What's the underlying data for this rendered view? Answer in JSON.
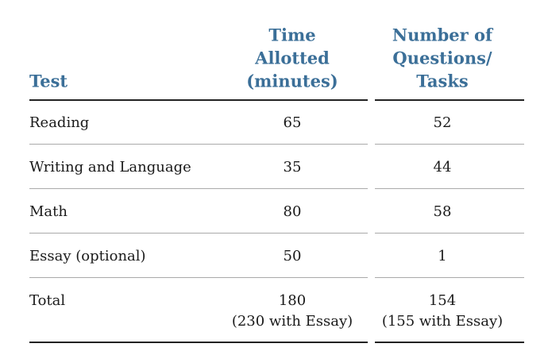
{
  "table": {
    "header": [
      [
        "Test"
      ],
      [
        "Time",
        "Allotted",
        "(minutes)"
      ],
      [
        "Number of",
        "Questions/",
        "Tasks"
      ]
    ],
    "rows": [
      [
        [
          "Reading"
        ],
        [
          "65"
        ],
        [
          "52"
        ]
      ],
      [
        [
          "Writing and Language"
        ],
        [
          "35"
        ],
        [
          "44"
        ]
      ],
      [
        [
          "Math"
        ],
        [
          "80"
        ],
        [
          "58"
        ]
      ],
      [
        [
          "Essay (optional)"
        ],
        [
          "50"
        ],
        [
          "1"
        ]
      ],
      [
        [
          "Total"
        ],
        [
          "180",
          "(230 with Essay)"
        ],
        [
          "154",
          "(155 with Essay)"
        ]
      ]
    ]
  }
}
